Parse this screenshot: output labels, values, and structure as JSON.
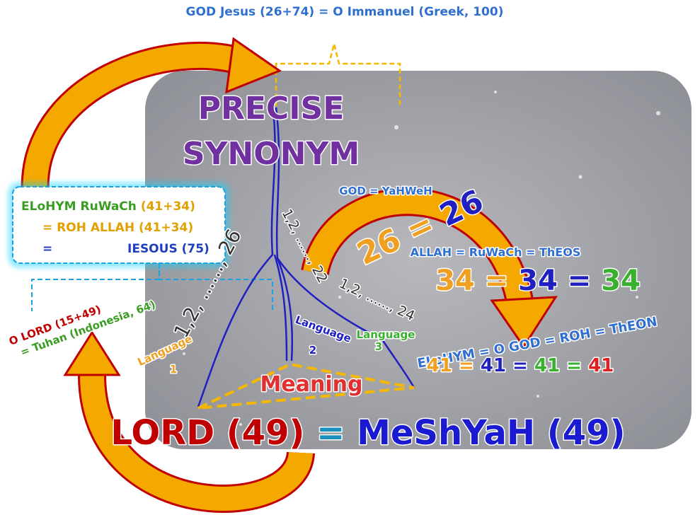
{
  "top_label": "GOD Jesus (26+74) = O Immanuel (Greek, 100)",
  "heading": [
    "PRECISE",
    "SYNONYM"
  ],
  "left_box": {
    "lines": [
      [
        "ELoHYM RuWaCh",
        "(41+34)"
      ],
      [
        "= ROH ALLAH",
        "(41+34)"
      ],
      [
        "=",
        "IESOUS (75)"
      ]
    ]
  },
  "side_label": [
    "O LORD (15+49)",
    "= Tuhan (Indonesia, 64)"
  ],
  "sequences": [
    "1,2, ......, 26",
    "1,2, ......, 22",
    "1,2, ......, 24"
  ],
  "languages": [
    [
      "Language",
      "1"
    ],
    [
      "Language",
      "2"
    ],
    [
      "Language",
      "3"
    ]
  ],
  "meaning": "Meaning",
  "equations": [
    {
      "name": "GOD = YaHWeH",
      "parts": [
        "26",
        "=",
        "26"
      ]
    },
    {
      "name": "ALLAH = RuWaCh = ThEOS",
      "parts": [
        "34",
        "=",
        "34",
        "=",
        "34"
      ]
    },
    {
      "name": "ELoHYM = O GOD = ROH = ThEON",
      "parts": [
        "41",
        "=",
        "41",
        "=",
        "41",
        "=",
        "41"
      ]
    }
  ],
  "bottom": [
    "LORD (49)",
    "=",
    "MeShYaH (49)"
  ]
}
